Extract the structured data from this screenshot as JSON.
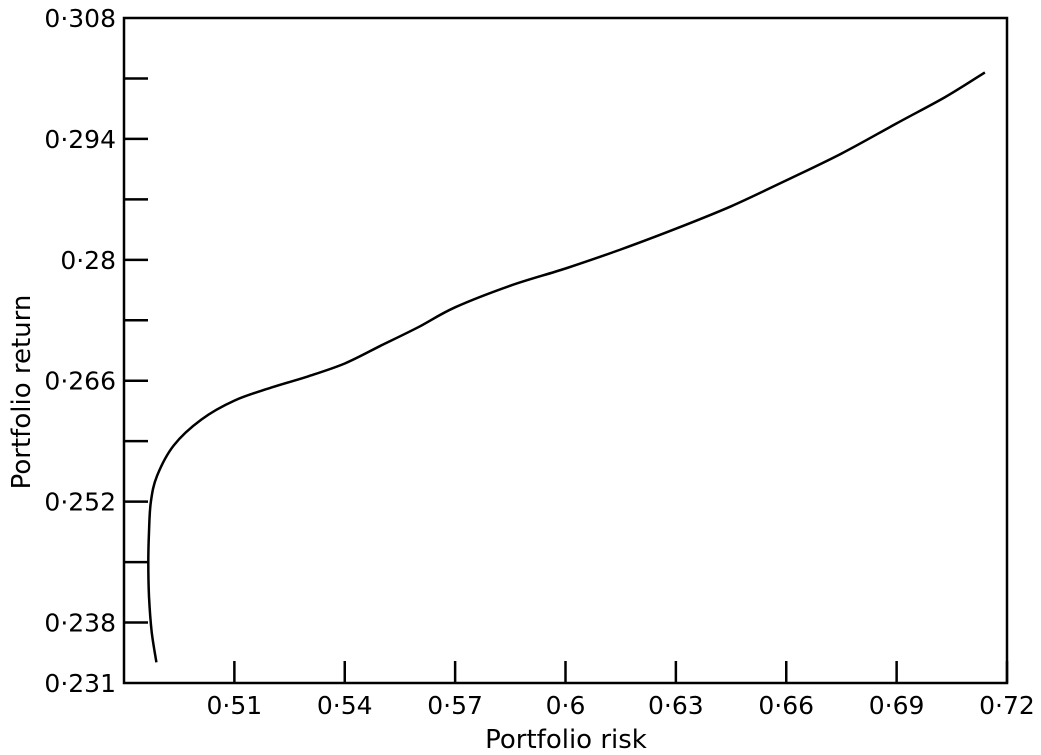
{
  "chart_data": {
    "type": "line",
    "title": "",
    "xlabel": "Portfolio risk",
    "ylabel": "Portfolio return",
    "xlim": [
      0.48,
      0.72
    ],
    "ylim": [
      0.231,
      0.308
    ],
    "x_ticks": [
      0.51,
      0.54,
      0.57,
      0.6,
      0.63,
      0.66,
      0.69,
      0.72
    ],
    "x_tick_labels": [
      "0·51",
      "0·54",
      "0·57",
      "0·6",
      "0·63",
      "0·66",
      "0·69",
      "0·72"
    ],
    "y_ticks": [
      0.231,
      0.238,
      0.245,
      0.252,
      0.259,
      0.266,
      0.273,
      0.28,
      0.287,
      0.294,
      0.301,
      0.308
    ],
    "y_tick_labels": [
      "0·231",
      "0·238",
      "",
      "0·252",
      "",
      "0·266",
      "",
      "0·28",
      "",
      "0·294",
      "",
      "0·308"
    ],
    "grid": false,
    "legend": "none",
    "series": [
      {
        "color": "#000000",
        "points": [
          [
            0.4888,
            0.2334
          ],
          [
            0.4875,
            0.237
          ],
          [
            0.4868,
            0.241
          ],
          [
            0.4866,
            0.245
          ],
          [
            0.4868,
            0.2485
          ],
          [
            0.4873,
            0.252
          ],
          [
            0.489,
            0.255
          ],
          [
            0.4935,
            0.2585
          ],
          [
            0.501,
            0.2615
          ],
          [
            0.51,
            0.2637
          ],
          [
            0.52,
            0.2652
          ],
          [
            0.53,
            0.2665
          ],
          [
            0.54,
            0.268
          ],
          [
            0.55,
            0.2701
          ],
          [
            0.56,
            0.2722
          ],
          [
            0.57,
            0.2745
          ],
          [
            0.585,
            0.277
          ],
          [
            0.6,
            0.279
          ],
          [
            0.615,
            0.2812
          ],
          [
            0.63,
            0.2836
          ],
          [
            0.645,
            0.2862
          ],
          [
            0.66,
            0.2892
          ],
          [
            0.675,
            0.2923
          ],
          [
            0.69,
            0.2958
          ],
          [
            0.703,
            0.2988
          ],
          [
            0.714,
            0.3017
          ]
        ]
      }
    ]
  }
}
